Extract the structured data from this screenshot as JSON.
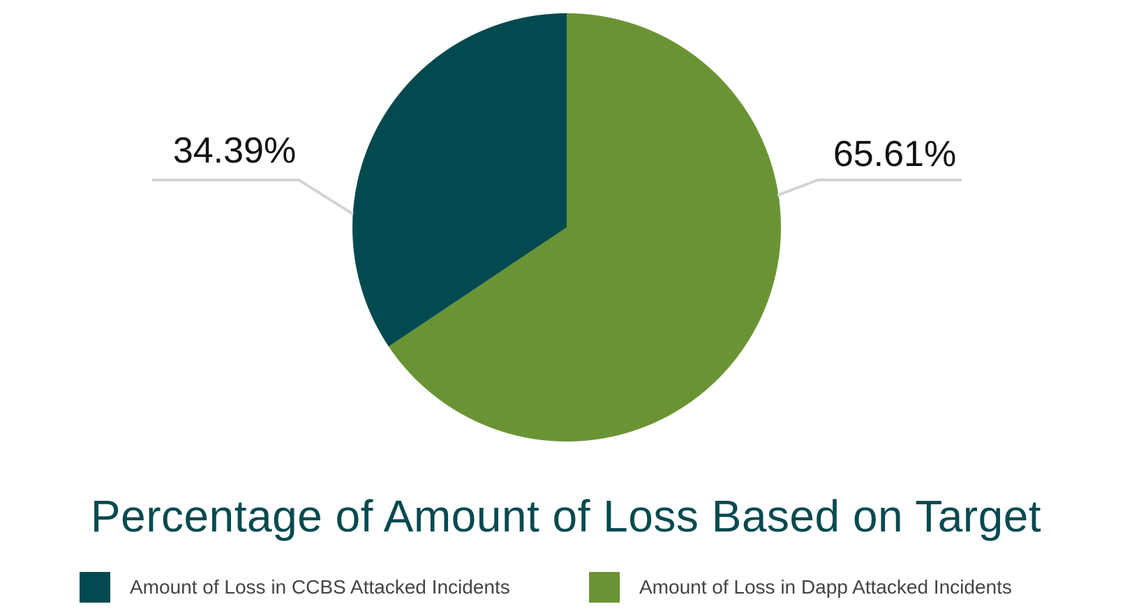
{
  "chart_data": {
    "type": "pie",
    "title": "Percentage of Amount of Loss Based on Target",
    "categories": [
      "Amount of Loss in CCBS Attacked Incidents",
      "Amount of Loss in Dapp Attacked Incidents"
    ],
    "values": [
      34.39,
      65.61
    ],
    "data_labels": [
      "34.39%",
      "65.61%"
    ],
    "colors": [
      "#034a50",
      "#6a9434"
    ],
    "legend_position": "bottom"
  }
}
